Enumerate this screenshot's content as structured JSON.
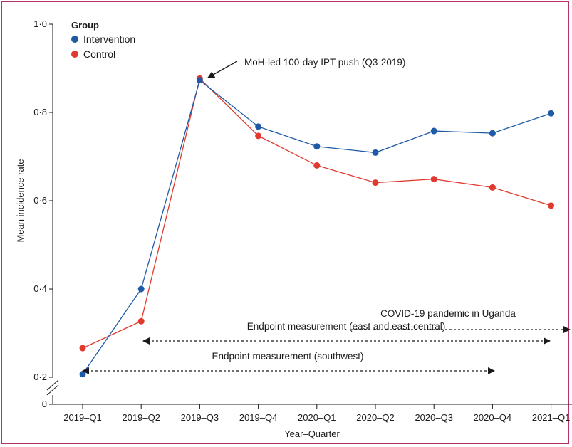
{
  "chart_data": {
    "type": "line",
    "xlabel": "Year–Quarter",
    "ylabel": "Mean incidence rate",
    "categories": [
      "2019–Q1",
      "2019–Q2",
      "2019–Q3",
      "2019–Q4",
      "2020–Q1",
      "2020–Q2",
      "2020–Q3",
      "2020–Q4",
      "2021–Q1"
    ],
    "ylim": [
      0.2,
      1.0
    ],
    "yticks": [
      0.2,
      0.4,
      0.6,
      0.8,
      1.0
    ],
    "ytick_labels": [
      "0·2",
      "0·4",
      "0·6",
      "0·8",
      "1·0"
    ],
    "y_zero_label": "0",
    "axis_break": true,
    "grid": false,
    "legend": {
      "title": "Group",
      "position": "top-left"
    },
    "series": [
      {
        "name": "Intervention",
        "color": "#1f5aa6",
        "values": [
          0.207,
          0.4,
          0.873,
          0.768,
          0.723,
          0.709,
          0.758,
          0.753,
          0.798
        ]
      },
      {
        "name": "Control",
        "color": "#e03a2f",
        "values": [
          0.266,
          0.327,
          0.877,
          0.747,
          0.68,
          0.641,
          0.649,
          0.63,
          0.589
        ]
      }
    ],
    "annotations": [
      {
        "text": "MoH-led 100-day IPT push (Q3-2019)",
        "type": "arrow",
        "target_category": "2019–Q3",
        "target_value": 0.875
      },
      {
        "text": "COVID-19 pandemic in Uganda",
        "type": "dashed-arrow",
        "from": "2020–Q2",
        "to": "beyond 2021–Q1",
        "both_ends": false
      },
      {
        "text": "Endpoint measurement (east and east-central)",
        "type": "dashed-arrow",
        "from": "2019–Q2",
        "to": "2021–Q1",
        "both_ends": true
      },
      {
        "text": "Endpoint measurement (southwest)",
        "type": "dashed-arrow",
        "from": "2019–Q1",
        "to": "2020–Q4",
        "both_ends": true
      }
    ]
  }
}
